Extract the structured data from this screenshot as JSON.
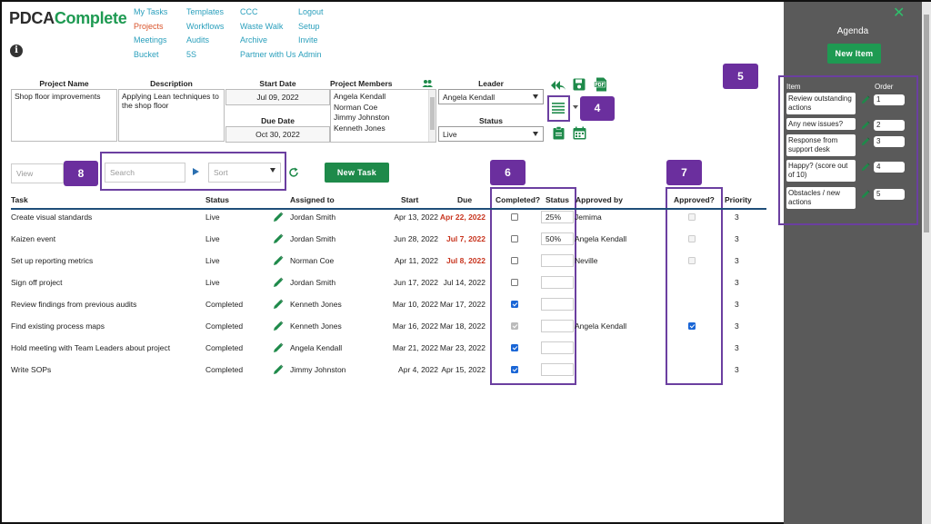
{
  "app": {
    "logo_part1": "PDCA",
    "logo_part2": "Complete",
    "info_icon": "info-icon"
  },
  "nav": {
    "col1": [
      "My Tasks",
      "Projects",
      "Meetings",
      "Bucket"
    ],
    "col2": [
      "Templates",
      "Workflows",
      "Audits",
      "5S"
    ],
    "col3": [
      "CCC",
      "Waste Walk",
      "Archive",
      "Partner with Us"
    ],
    "col4": [
      "Logout",
      "Setup",
      "Invite",
      "Admin"
    ],
    "active": "Projects"
  },
  "project": {
    "name_label": "Project Name",
    "name_value": "Shop floor improvements",
    "desc_label": "Description",
    "desc_value": "Applying Lean techniques to the shop floor",
    "start_label": "Start Date",
    "start_value": "Jul 09, 2022",
    "due_label": "Due Date",
    "due_value": "Oct 30, 2022",
    "members_label": "Project Members",
    "members": [
      "Angela Kendall",
      "Norman Coe",
      "Jimmy Johnston",
      "Kenneth Jones"
    ],
    "leader_label": "Leader",
    "leader_value": "Angela Kendall",
    "status_label": "Status",
    "status_value": "Live"
  },
  "badges": {
    "b4": "4",
    "b5": "5",
    "b6": "6",
    "b7": "7",
    "b8": "8"
  },
  "toolbar": {
    "view_placeholder": "View",
    "search_placeholder": "Search",
    "sort_placeholder": "Sort",
    "new_task_label": "New Task"
  },
  "table": {
    "headers": {
      "task": "Task",
      "status": "Status",
      "assigned": "Assigned to",
      "start": "Start",
      "due": "Due",
      "completed": "Completed?",
      "status2": "Status",
      "approved_by": "Approved by",
      "approved": "Approved?",
      "priority": "Priority"
    },
    "rows": [
      {
        "task": "Create visual standards",
        "status": "Live",
        "assigned": "Jordan Smith",
        "start": "Apr 13, 2022",
        "due": "Apr 22, 2022",
        "due_overdue": true,
        "completed": false,
        "completed_disabled": false,
        "progress": "25%",
        "approved_by": "Jemima",
        "approved": false,
        "priority": "3"
      },
      {
        "task": "Kaizen event",
        "status": "Live",
        "assigned": "Jordan Smith",
        "start": "Jun 28, 2022",
        "due": "Jul 7, 2022",
        "due_overdue": true,
        "completed": false,
        "completed_disabled": false,
        "progress": "50%",
        "approved_by": "Angela Kendall",
        "approved": false,
        "priority": "3"
      },
      {
        "task": "Set up reporting metrics",
        "status": "Live",
        "assigned": "Norman Coe",
        "start": "Apr 11, 2022",
        "due": "Jul 8, 2022",
        "due_overdue": true,
        "completed": false,
        "completed_disabled": false,
        "progress": "",
        "approved_by": "Neville",
        "approved": false,
        "priority": "3"
      },
      {
        "task": "Sign off project",
        "status": "Live",
        "assigned": "Jordan Smith",
        "start": "Jun 17, 2022",
        "due": "Jul 14, 2022",
        "due_overdue": false,
        "completed": false,
        "completed_disabled": false,
        "progress": "",
        "approved_by": "",
        "approved": null,
        "priority": "3"
      },
      {
        "task": "Review findings from previous audits",
        "status": "Completed",
        "assigned": "Kenneth Jones",
        "start": "Mar 10, 2022",
        "due": "Mar 17, 2022",
        "due_overdue": false,
        "completed": true,
        "completed_disabled": false,
        "progress": "",
        "approved_by": "",
        "approved": null,
        "priority": "3"
      },
      {
        "task": "Find existing process maps",
        "status": "Completed",
        "assigned": "Kenneth Jones",
        "start": "Mar 16, 2022",
        "due": "Mar 18, 2022",
        "due_overdue": false,
        "completed": true,
        "completed_disabled": true,
        "progress": "",
        "approved_by": "Angela Kendall",
        "approved": true,
        "priority": "3"
      },
      {
        "task": "Hold meeting with Team Leaders about project",
        "status": "Completed",
        "assigned": "Angela Kendall",
        "start": "Mar 21, 2022",
        "due": "Mar 23, 2022",
        "due_overdue": false,
        "completed": true,
        "completed_disabled": false,
        "progress": "",
        "approved_by": "",
        "approved": null,
        "priority": "3"
      },
      {
        "task": "Write SOPs",
        "status": "Completed",
        "assigned": "Jimmy Johnston",
        "start": "Apr 4, 2022",
        "due": "Apr 15, 2022",
        "due_overdue": false,
        "completed": true,
        "completed_disabled": false,
        "progress": "",
        "approved_by": "",
        "approved": null,
        "priority": "3"
      }
    ]
  },
  "agenda": {
    "title": "Agenda",
    "new_item_label": "New Item",
    "item_header": "Item",
    "order_header": "Order",
    "items": [
      {
        "text": "Review outstanding actions",
        "order": "1"
      },
      {
        "text": "Any new issues?",
        "order": "2"
      },
      {
        "text": "Response from support desk",
        "order": "3"
      },
      {
        "text": "Happy? (score out of 10)",
        "order": "4"
      },
      {
        "text": "Obstacles / new actions",
        "order": "5"
      }
    ]
  },
  "colors": {
    "brand_green": "#1e8a4a",
    "nav_link": "#2a9fbc",
    "nav_active": "#d9542b",
    "overdue": "#c8351f",
    "annotation_purple": "#6b2f9e",
    "agenda_bg": "#5a5a5a"
  }
}
